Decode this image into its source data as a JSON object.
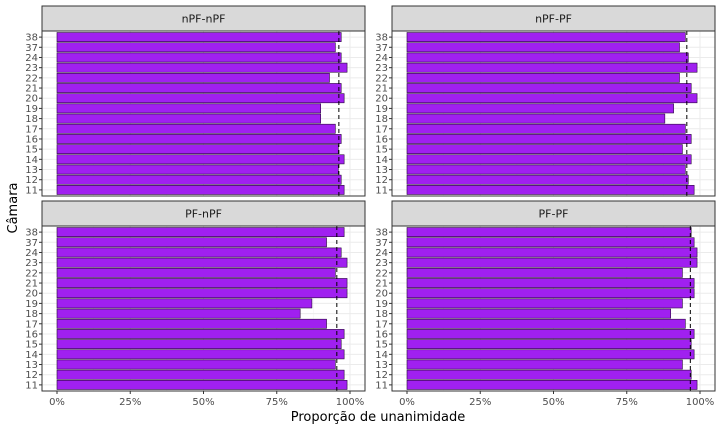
{
  "chart_data": {
    "type": "bar",
    "orientation": "horizontal",
    "layout": "facet 2x2",
    "xlabel": "Proporção de unanimidade",
    "ylabel": "Câmara",
    "xlim": [
      0,
      1
    ],
    "x_ticks": [
      "0%",
      "25%",
      "50%",
      "75%",
      "100%"
    ],
    "x_tick_values": [
      0,
      0.25,
      0.5,
      0.75,
      1.0
    ],
    "categories": [
      "11",
      "12",
      "13",
      "14",
      "15",
      "16",
      "17",
      "18",
      "19",
      "20",
      "21",
      "22",
      "23",
      "24",
      "37",
      "38"
    ],
    "grid": true,
    "bar_color": "#A020F0",
    "reference_line": "dashed vertical line per panel",
    "facets": [
      {
        "label": "nPF-nPF",
        "values": [
          0.98,
          0.97,
          0.96,
          0.98,
          0.96,
          0.97,
          0.95,
          0.9,
          0.9,
          0.98,
          0.97,
          0.93,
          0.99,
          0.97,
          0.95,
          0.97
        ],
        "reference_x": 0.962
      },
      {
        "label": "nPF-PF",
        "values": [
          0.98,
          0.96,
          0.95,
          0.97,
          0.94,
          0.97,
          0.95,
          0.88,
          0.91,
          0.99,
          0.97,
          0.93,
          0.99,
          0.96,
          0.93,
          0.95
        ],
        "reference_x": 0.955
      },
      {
        "label": "PF-nPF",
        "values": [
          0.99,
          0.98,
          0.95,
          0.98,
          0.97,
          0.98,
          0.92,
          0.83,
          0.87,
          0.99,
          0.99,
          0.95,
          0.99,
          0.97,
          0.92,
          0.98
        ],
        "reference_x": 0.955
      },
      {
        "label": "PF-PF",
        "values": [
          0.99,
          0.97,
          0.94,
          0.98,
          0.97,
          0.98,
          0.95,
          0.9,
          0.94,
          0.98,
          0.98,
          0.94,
          0.99,
          0.99,
          0.98,
          0.97
        ],
        "reference_x": 0.967
      }
    ]
  }
}
